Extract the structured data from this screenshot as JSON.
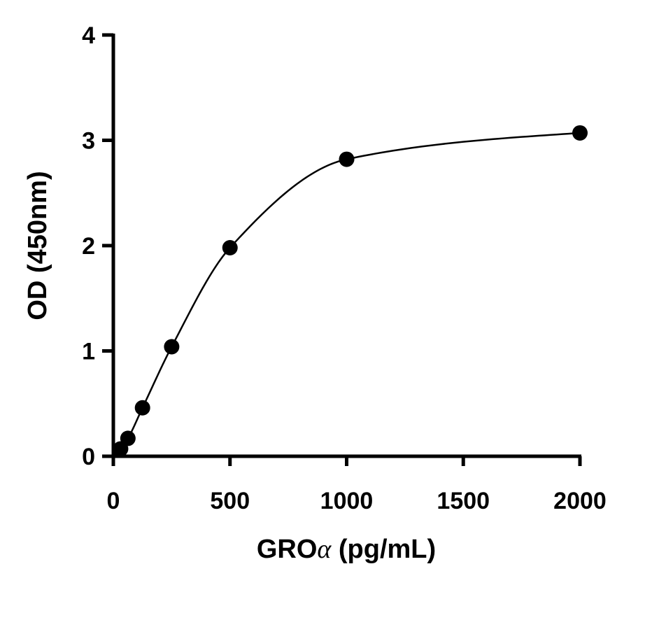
{
  "chart_data": {
    "type": "scatter",
    "title": "",
    "xlabel_prefix": "GRO",
    "xlabel_symbol": "α",
    "xlabel_suffix": " (pg/mL)",
    "ylabel": "OD (450nm)",
    "xlim": [
      0,
      2000
    ],
    "ylim": [
      0,
      4
    ],
    "x_ticks": [
      "0",
      "500",
      "1000",
      "1500",
      "2000"
    ],
    "y_ticks": [
      "0",
      "1",
      "2",
      "3",
      "4"
    ],
    "grid": false,
    "legend": "none",
    "series": [
      {
        "points": [
          {
            "x": 31.25,
            "y": 0.07
          },
          {
            "x": 62.5,
            "y": 0.17
          },
          {
            "x": 125,
            "y": 0.46
          },
          {
            "x": 250,
            "y": 1.04
          },
          {
            "x": 500,
            "y": 1.98
          },
          {
            "x": 1000,
            "y": 2.82
          },
          {
            "x": 2000,
            "y": 3.07
          }
        ],
        "fit": "sigmoidal curve",
        "color": "#000000"
      }
    ]
  }
}
